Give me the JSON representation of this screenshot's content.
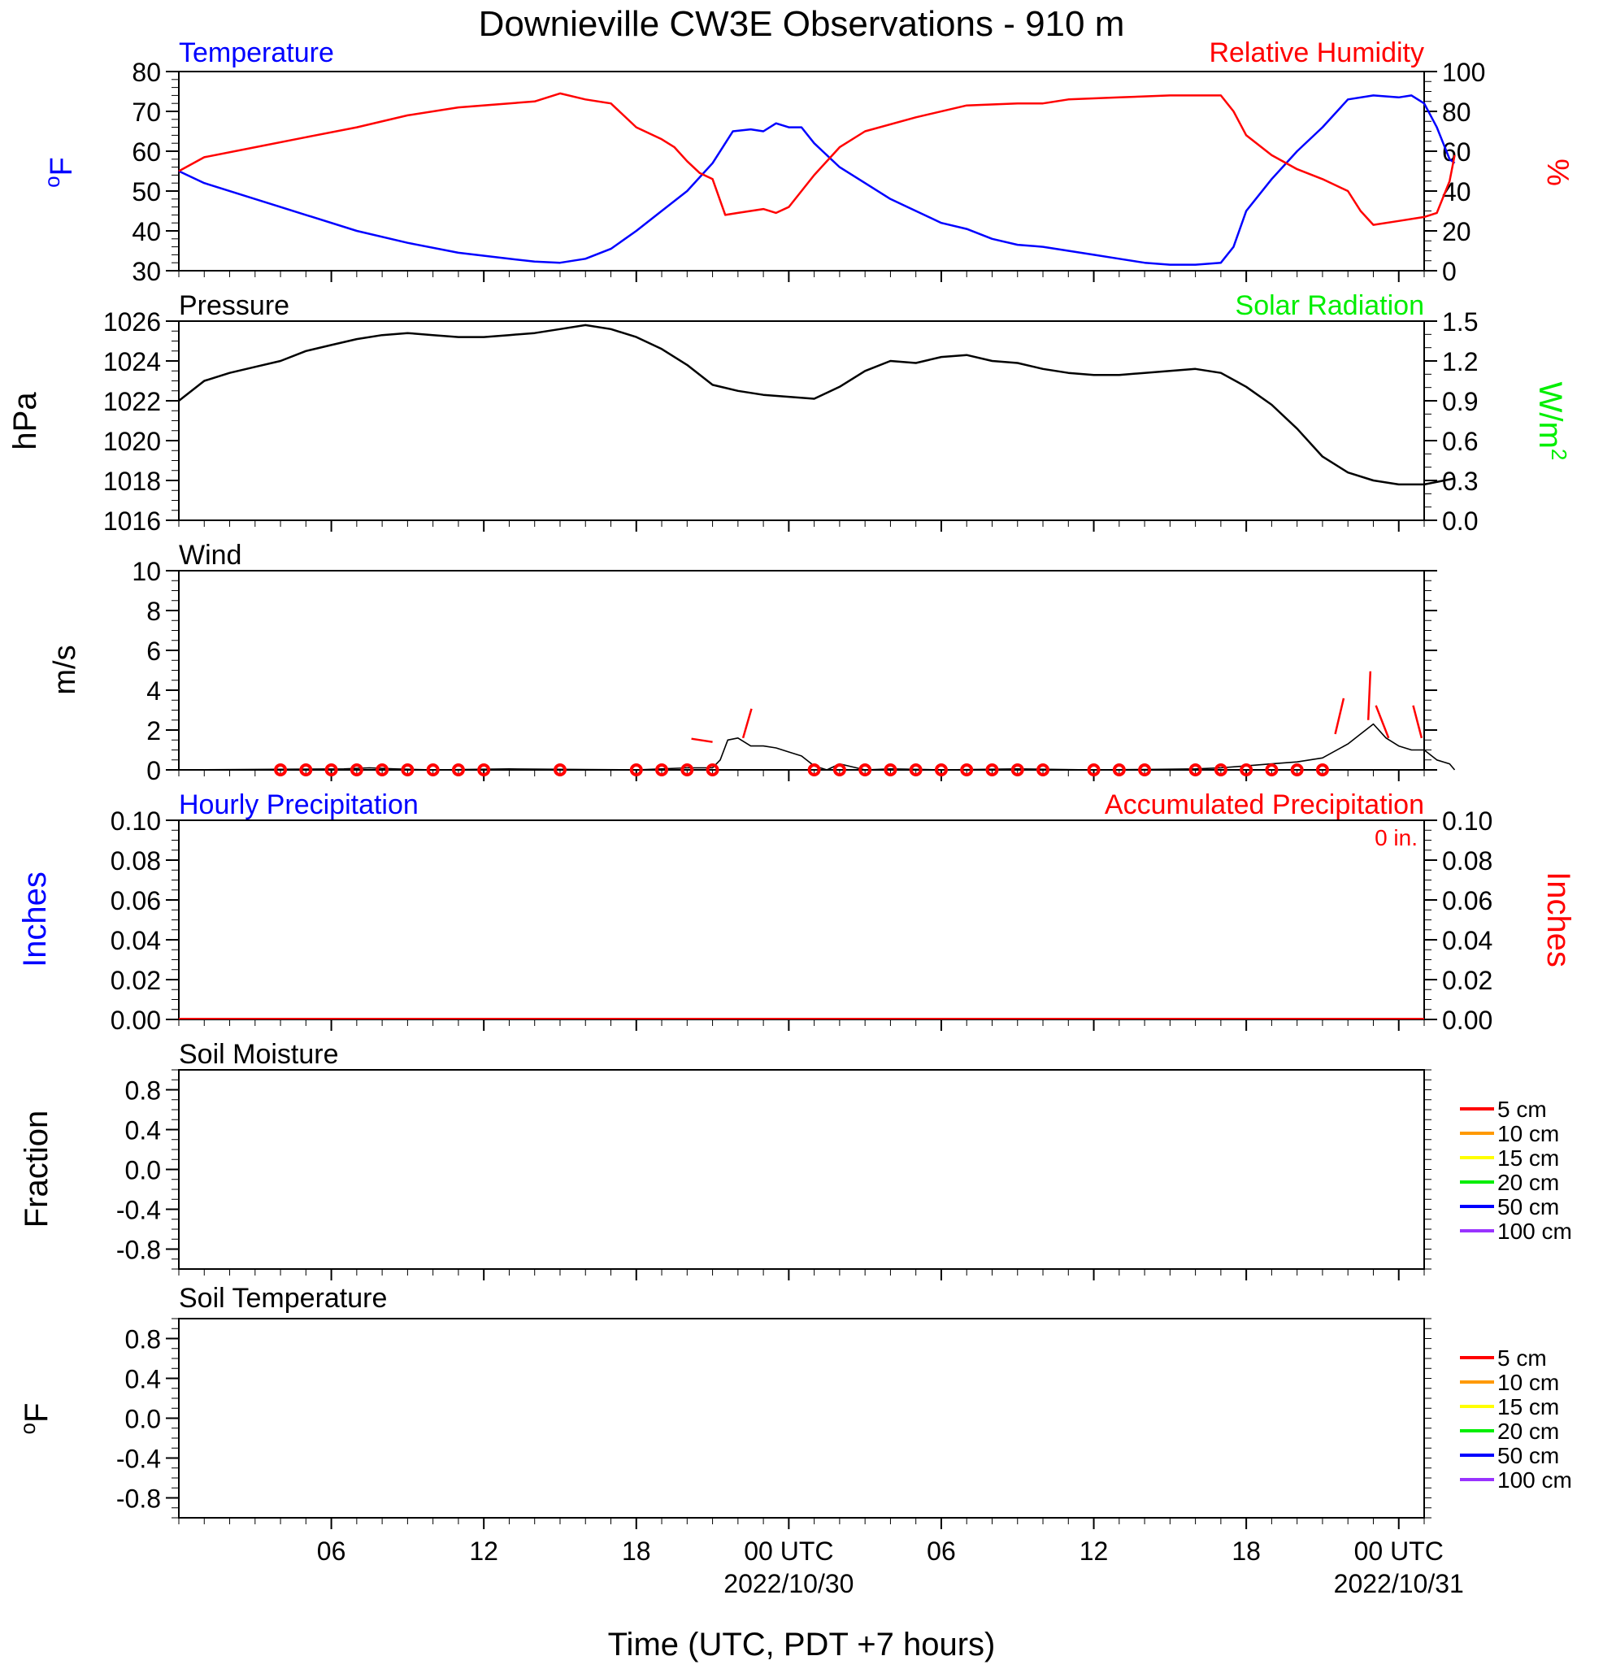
{
  "title": "Downieville CW3E Observations - 910 m",
  "xlabel": "Time (UTC, PDT +7 hours)",
  "colors": {
    "temperature": "#0000ff",
    "humidity": "#ff0000",
    "pressure": "#000000",
    "solar": "#00ff00",
    "wind": "#000000",
    "barb": "#ff0000",
    "precip_hourly": "#0000ff",
    "precip_acc": "#ff0000"
  },
  "x_ticks": [
    {
      "hour": 5,
      "label": "06",
      "sub": ""
    },
    {
      "hour": 11,
      "label": "12",
      "sub": ""
    },
    {
      "hour": 17,
      "label": "18",
      "sub": ""
    },
    {
      "hour": 23,
      "label": "00 UTC",
      "sub": "2022/10/30"
    },
    {
      "hour": 29,
      "label": "06",
      "sub": ""
    },
    {
      "hour": 35,
      "label": "12",
      "sub": ""
    },
    {
      "hour": 41,
      "label": "18",
      "sub": ""
    },
    {
      "hour": 47,
      "label": "00 UTC",
      "sub": "2022/10/31"
    }
  ],
  "panels": {
    "temp_rh": {
      "left_title": "Temperature",
      "right_title": "Relative Humidity",
      "left_unit": "oF",
      "right_unit": "%",
      "left_ticks": [
        "30",
        "40",
        "50",
        "60",
        "70",
        "80"
      ],
      "right_ticks": [
        "0",
        "20",
        "40",
        "60",
        "80",
        "100"
      ]
    },
    "pressure": {
      "left_title": "Pressure",
      "right_title": "Solar Radiation",
      "left_unit": "hPa",
      "right_unit": "W/m2",
      "left_ticks": [
        "1016",
        "1018",
        "1020",
        "1022",
        "1024",
        "1026"
      ],
      "right_ticks": [
        "0.0",
        "0.3",
        "0.6",
        "0.9",
        "1.2",
        "1.5"
      ]
    },
    "wind": {
      "left_title": "Wind",
      "left_unit": "m/s",
      "left_ticks": [
        "0",
        "2",
        "4",
        "6",
        "8",
        "10"
      ]
    },
    "precip": {
      "left_title": "Hourly Precipitation",
      "right_title": "Accumulated Precipitation",
      "left_unit": "Inches",
      "right_unit": "Inches",
      "total_label": "0 in.",
      "left_ticks": [
        "0.00",
        "0.02",
        "0.04",
        "0.06",
        "0.08",
        "0.10"
      ],
      "right_ticks": [
        "0.00",
        "0.02",
        "0.04",
        "0.06",
        "0.08",
        "0.10"
      ]
    },
    "soil_moisture": {
      "left_title": "Soil Moisture",
      "left_unit": "Fraction",
      "left_ticks": [
        "-0.8",
        "-0.4",
        "0.0",
        "0.4",
        "0.8"
      ]
    },
    "soil_temperature": {
      "left_title": "Soil Temperature",
      "left_unit": "oF",
      "left_ticks": [
        "-0.8",
        "-0.4",
        "0.0",
        "0.4",
        "0.8"
      ]
    }
  },
  "soil_legend": [
    {
      "label": "5 cm",
      "color": "#ff0000"
    },
    {
      "label": "10 cm",
      "color": "#ff9900"
    },
    {
      "label": "15 cm",
      "color": "#ffff00"
    },
    {
      "label": "20 cm",
      "color": "#00ee00"
    },
    {
      "label": "50 cm",
      "color": "#0000ff"
    },
    {
      "label": "100 cm",
      "color": "#9933ff"
    }
  ],
  "chart_data": [
    {
      "type": "line",
      "panel": "temp_rh",
      "x_units": "hours since 2022-10-29 00:00 UTC",
      "xlim": [
        -1,
        48
      ],
      "series": [
        {
          "name": "Temperature",
          "axis": "left",
          "ylim": [
            30,
            80
          ],
          "points": [
            [
              -1,
              55
            ],
            [
              0,
              52
            ],
            [
              2,
              48
            ],
            [
              4,
              44
            ],
            [
              6,
              40
            ],
            [
              8,
              37
            ],
            [
              10,
              34.5
            ],
            [
              12,
              33
            ],
            [
              13,
              32.3
            ],
            [
              14,
              32
            ],
            [
              15,
              33
            ],
            [
              16,
              35.5
            ],
            [
              17,
              40
            ],
            [
              18,
              45
            ],
            [
              19,
              50
            ],
            [
              20,
              57
            ],
            [
              20.8,
              65
            ],
            [
              21.5,
              65.5
            ],
            [
              22,
              65
            ],
            [
              22.5,
              67
            ],
            [
              23,
              66
            ],
            [
              23.5,
              66
            ],
            [
              24,
              62
            ],
            [
              25,
              56
            ],
            [
              26,
              52
            ],
            [
              27,
              48
            ],
            [
              28,
              45
            ],
            [
              29,
              42
            ],
            [
              30,
              40.5
            ],
            [
              31,
              38
            ],
            [
              32,
              36.5
            ],
            [
              33,
              36
            ],
            [
              34,
              35
            ],
            [
              35,
              34
            ],
            [
              36,
              33
            ],
            [
              37,
              32
            ],
            [
              38,
              31.5
            ],
            [
              39,
              31.5
            ],
            [
              40,
              32
            ],
            [
              40.5,
              36
            ],
            [
              41,
              45
            ],
            [
              42,
              53
            ],
            [
              43,
              60
            ],
            [
              44,
              66
            ],
            [
              45,
              73
            ],
            [
              46,
              74
            ],
            [
              47,
              73.5
            ],
            [
              47.5,
              74
            ],
            [
              48,
              72
            ],
            [
              48.5,
              66
            ],
            [
              49,
              58
            ],
            [
              49.2,
              57
            ]
          ]
        },
        {
          "name": "Relative Humidity",
          "axis": "right",
          "ylim": [
            0,
            100
          ],
          "points": [
            [
              -1,
              50
            ],
            [
              0,
              57
            ],
            [
              2,
              62
            ],
            [
              4,
              67
            ],
            [
              6,
              72
            ],
            [
              8,
              78
            ],
            [
              10,
              82
            ],
            [
              12,
              84
            ],
            [
              13,
              85
            ],
            [
              14,
              89
            ],
            [
              15,
              86
            ],
            [
              16,
              84
            ],
            [
              17,
              72
            ],
            [
              18,
              66
            ],
            [
              18.5,
              62
            ],
            [
              19,
              55
            ],
            [
              19.5,
              49
            ],
            [
              20,
              46
            ],
            [
              20.5,
              28
            ],
            [
              21,
              29
            ],
            [
              22,
              31
            ],
            [
              22.5,
              29
            ],
            [
              23,
              32
            ],
            [
              23.5,
              40
            ],
            [
              24,
              48
            ],
            [
              25,
              62
            ],
            [
              26,
              70
            ],
            [
              28,
              77
            ],
            [
              30,
              83
            ],
            [
              32,
              84
            ],
            [
              33,
              84
            ],
            [
              34,
              86
            ],
            [
              36,
              87
            ],
            [
              38,
              88
            ],
            [
              39,
              88
            ],
            [
              40,
              88
            ],
            [
              40.5,
              80
            ],
            [
              41,
              68
            ],
            [
              42,
              58
            ],
            [
              43,
              51
            ],
            [
              44,
              46
            ],
            [
              45,
              40
            ],
            [
              45.5,
              30
            ],
            [
              46,
              23
            ],
            [
              47,
              25
            ],
            [
              48,
              27
            ],
            [
              48.5,
              29
            ],
            [
              49,
              45
            ],
            [
              49.2,
              58
            ]
          ]
        }
      ]
    },
    {
      "type": "line",
      "panel": "pressure",
      "x_units": "hours since 2022-10-29 00:00 UTC",
      "xlim": [
        -1,
        48
      ],
      "series": [
        {
          "name": "Pressure",
          "axis": "left",
          "ylim": [
            1016,
            1026
          ],
          "points": [
            [
              -1,
              1022
            ],
            [
              0,
              1023
            ],
            [
              1,
              1023.4
            ],
            [
              2,
              1023.7
            ],
            [
              3,
              1024
            ],
            [
              4,
              1024.5
            ],
            [
              5,
              1024.8
            ],
            [
              6,
              1025.1
            ],
            [
              7,
              1025.3
            ],
            [
              8,
              1025.4
            ],
            [
              9,
              1025.3
            ],
            [
              10,
              1025.2
            ],
            [
              11,
              1025.2
            ],
            [
              12,
              1025.3
            ],
            [
              13,
              1025.4
            ],
            [
              14,
              1025.6
            ],
            [
              15,
              1025.8
            ],
            [
              16,
              1025.6
            ],
            [
              17,
              1025.2
            ],
            [
              18,
              1024.6
            ],
            [
              19,
              1023.8
            ],
            [
              20,
              1022.8
            ],
            [
              21,
              1022.5
            ],
            [
              22,
              1022.3
            ],
            [
              23,
              1022.2
            ],
            [
              24,
              1022.1
            ],
            [
              25,
              1022.7
            ],
            [
              26,
              1023.5
            ],
            [
              27,
              1024
            ],
            [
              28,
              1023.9
            ],
            [
              29,
              1024.2
            ],
            [
              30,
              1024.3
            ],
            [
              31,
              1024
            ],
            [
              32,
              1023.9
            ],
            [
              33,
              1023.6
            ],
            [
              34,
              1023.4
            ],
            [
              35,
              1023.3
            ],
            [
              36,
              1023.3
            ],
            [
              37,
              1023.4
            ],
            [
              38,
              1023.5
            ],
            [
              39,
              1023.6
            ],
            [
              40,
              1023.4
            ],
            [
              41,
              1022.7
            ],
            [
              42,
              1021.8
            ],
            [
              43,
              1020.6
            ],
            [
              44,
              1019.2
            ],
            [
              45,
              1018.4
            ],
            [
              46,
              1018
            ],
            [
              47,
              1017.8
            ],
            [
              48,
              1017.8
            ],
            [
              49.2,
              1018.1
            ]
          ]
        }
      ]
    },
    {
      "type": "line",
      "panel": "wind",
      "x_units": "hours since 2022-10-29 00:00 UTC",
      "xlim": [
        -1,
        48
      ],
      "series": [
        {
          "name": "Wind speed",
          "axis": "left",
          "ylim": [
            0,
            10
          ],
          "points": [
            [
              -1,
              0
            ],
            [
              5.5,
              0.05
            ],
            [
              6.5,
              0.1
            ],
            [
              7.5,
              0.05
            ],
            [
              9,
              0
            ],
            [
              12,
              0.05
            ],
            [
              15,
              0.02
            ],
            [
              17,
              0
            ],
            [
              19,
              0.1
            ],
            [
              20,
              0.1
            ],
            [
              20.3,
              0.5
            ],
            [
              20.6,
              1.5
            ],
            [
              21,
              1.6
            ],
            [
              21.5,
              1.2
            ],
            [
              22,
              1.2
            ],
            [
              22.5,
              1.1
            ],
            [
              23,
              0.9
            ],
            [
              23.5,
              0.7
            ],
            [
              24,
              0.2
            ],
            [
              24.5,
              0
            ],
            [
              25,
              0.3
            ],
            [
              26,
              0
            ],
            [
              27,
              0.05
            ],
            [
              29,
              0
            ],
            [
              32,
              0.05
            ],
            [
              35,
              0
            ],
            [
              37,
              0.02
            ],
            [
              39,
              0.05
            ],
            [
              40,
              0.1
            ],
            [
              41,
              0.2
            ],
            [
              42,
              0.3
            ],
            [
              43,
              0.4
            ],
            [
              44,
              0.6
            ],
            [
              45,
              1.3
            ],
            [
              45.5,
              1.8
            ],
            [
              46,
              2.3
            ],
            [
              46.5,
              1.6
            ],
            [
              47,
              1.2
            ],
            [
              47.5,
              1
            ],
            [
              48,
              1
            ],
            [
              48.5,
              0.5
            ],
            [
              49,
              0.3
            ],
            [
              49.2,
              0
            ]
          ]
        }
      ],
      "barb_circles": [
        3,
        4,
        5,
        6,
        7,
        8,
        9,
        10,
        11,
        14,
        17,
        18,
        19,
        20,
        24,
        25,
        26,
        27,
        28,
        29,
        30,
        31,
        32,
        33,
        35,
        36,
        37,
        39,
        40,
        41,
        42,
        43,
        44
      ]
    },
    {
      "type": "line",
      "panel": "precip",
      "series": [
        {
          "name": "Hourly Precipitation",
          "axis": "left",
          "ylim": [
            0,
            0.1
          ],
          "values": [
            0
          ]
        },
        {
          "name": "Accumulated Precipitation",
          "axis": "right",
          "ylim": [
            0,
            0.1
          ],
          "values": [
            0
          ]
        }
      ]
    }
  ]
}
